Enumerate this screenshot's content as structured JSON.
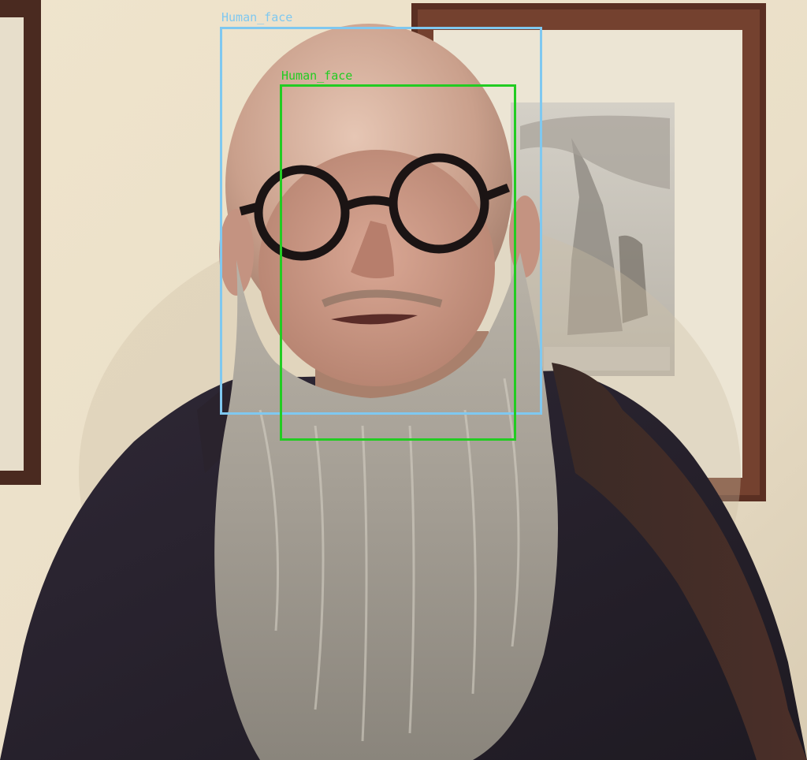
{
  "image": {
    "description_free": true
  },
  "detections": [
    {
      "label": "Human_face",
      "color": "#7fc8f0"
    },
    {
      "label": "Human_face",
      "color": "#22cc22"
    }
  ]
}
